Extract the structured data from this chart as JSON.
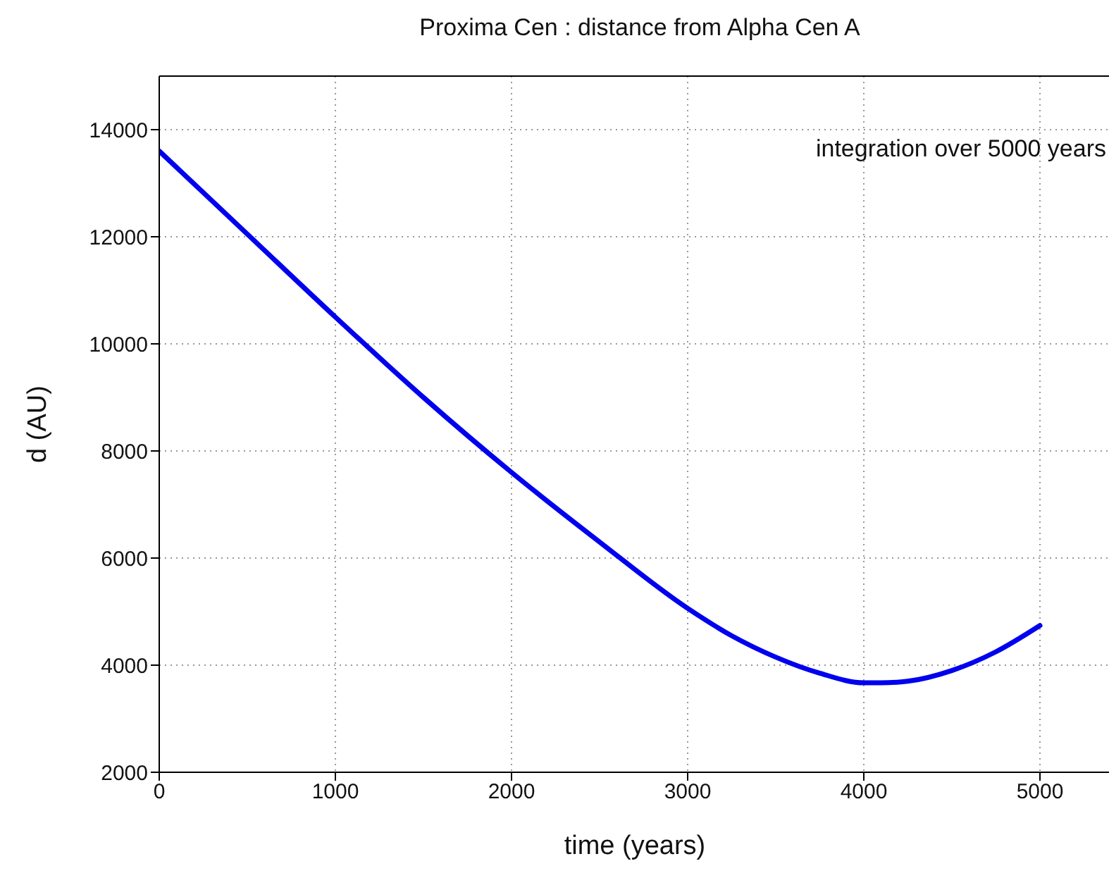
{
  "chart_data": {
    "type": "line",
    "title": "Proxima Cen : distance from Alpha Cen A",
    "xlabel": "time (years)",
    "ylabel": "d (AU)",
    "annotations": [
      "integration over 5000 years"
    ],
    "x": [
      0,
      500,
      1000,
      1500,
      2000,
      2500,
      3000,
      3250,
      3500,
      3750,
      4000,
      4100,
      4250,
      4500,
      4750,
      5000
    ],
    "series": [
      {
        "color": "#0000ee",
        "values": [
          13600,
          12050,
          10500,
          9000,
          7600,
          6300,
          5060,
          4550,
          4150,
          3850,
          3670,
          3670,
          3700,
          3900,
          4250,
          4740
        ]
      }
    ],
    "xlim": [
      0,
      5400
    ],
    "xticks": [
      0,
      1000,
      2000,
      3000,
      4000,
      5000
    ],
    "ylim": [
      2000,
      15000
    ],
    "yticks": [
      2000,
      4000,
      6000,
      8000,
      10000,
      12000,
      14000
    ],
    "grid": true,
    "legend": false,
    "marker": "none",
    "line_style": "solid"
  }
}
